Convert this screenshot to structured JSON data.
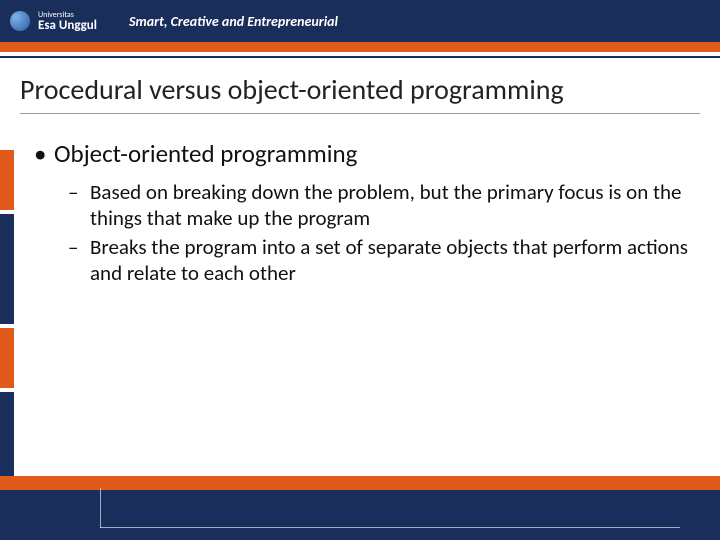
{
  "header": {
    "logo_small": "Universitas",
    "logo_main": "Esa Unggul",
    "tagline": "Smart, Creative and Entrepreneurial"
  },
  "title": "Procedural versus object-oriented programming",
  "bullets": {
    "l1": "Object-oriented programming",
    "l2a": "Based on breaking down the problem, but the primary focus is on the things that make up the program",
    "l2b": "Breaks the program into a set of separate objects that perform actions and relate to each other"
  },
  "colors": {
    "navy": "#1a2e5c",
    "orange": "#e05a1a",
    "background": "#ffffff"
  }
}
